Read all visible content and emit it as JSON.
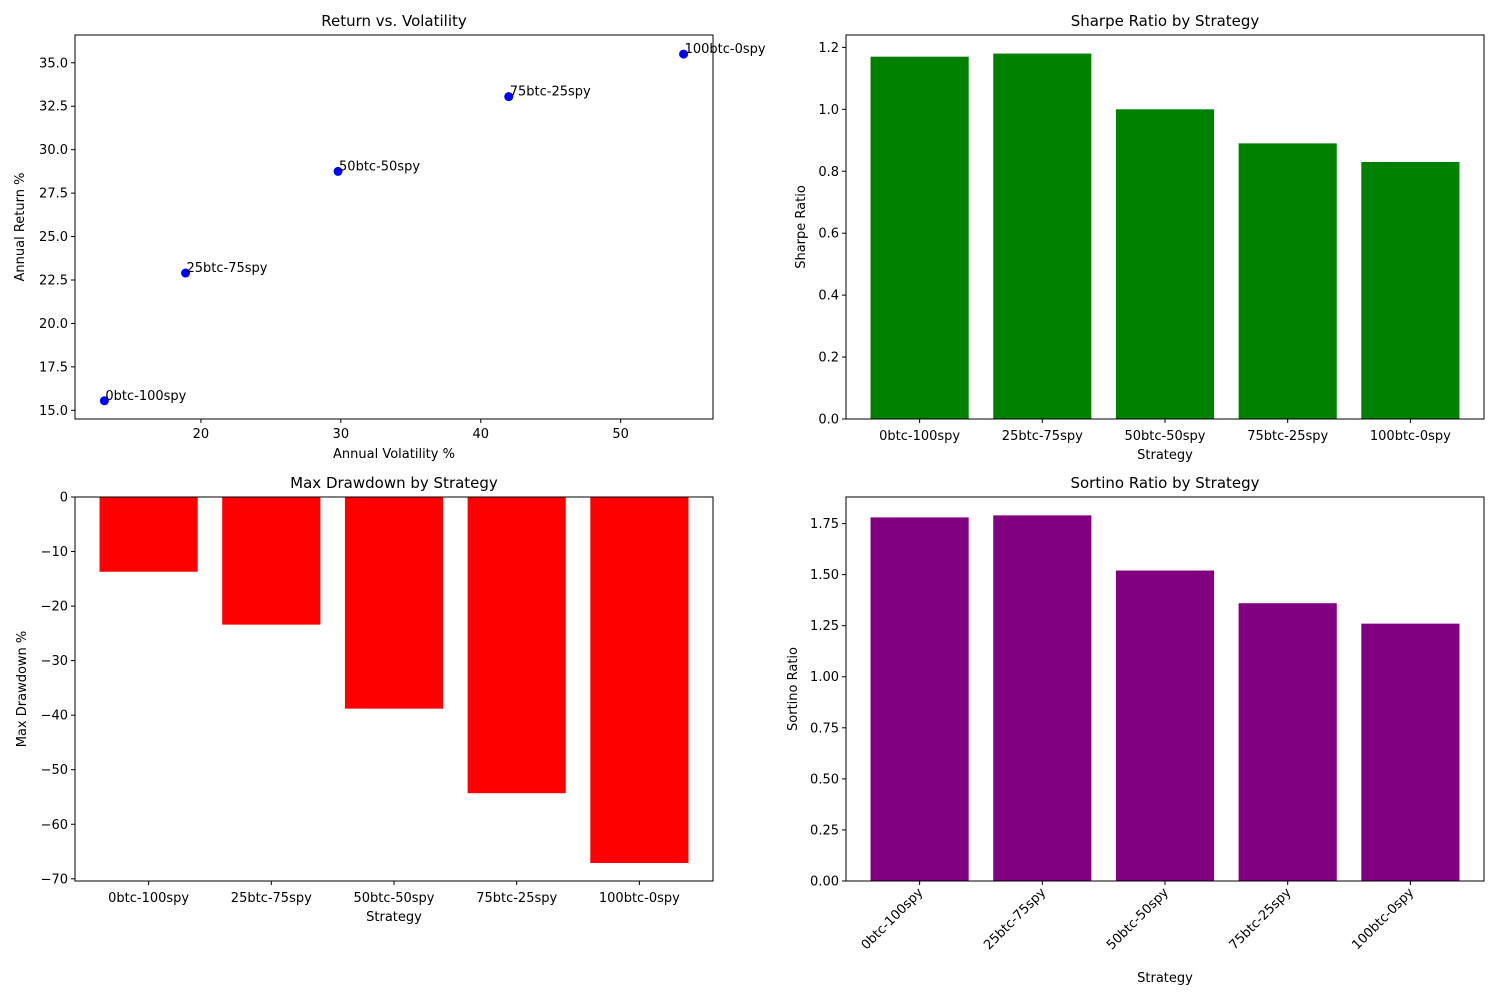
{
  "chart_data": [
    {
      "id": "scatter",
      "type": "scatter",
      "title": "Return vs. Volatility",
      "xlabel": "Annual Volatility %",
      "ylabel": "Annual Return %",
      "xlim": [
        11.0,
        56.6
      ],
      "ylim": [
        14.5,
        36.6
      ],
      "xticks": [
        20,
        30,
        40,
        50
      ],
      "yticks": [
        15.0,
        17.5,
        20.0,
        22.5,
        25.0,
        27.5,
        30.0,
        32.5,
        35.0
      ],
      "color": "#0000ff",
      "points": [
        {
          "label": "0btc-100spy",
          "x": 13.1,
          "y": 15.55
        },
        {
          "label": "25btc-75spy",
          "x": 18.9,
          "y": 22.9
        },
        {
          "label": "50btc-50spy",
          "x": 29.8,
          "y": 28.75
        },
        {
          "label": "75btc-25spy",
          "x": 42.0,
          "y": 33.05
        },
        {
          "label": "100btc-0spy",
          "x": 54.5,
          "y": 35.5
        }
      ]
    },
    {
      "id": "sharpe",
      "type": "bar",
      "title": "Sharpe Ratio by Strategy",
      "xlabel": "Strategy",
      "ylabel": "Sharpe Ratio",
      "ylim": [
        0,
        1.24
      ],
      "yticks": [
        0.0,
        0.2,
        0.4,
        0.6,
        0.8,
        1.0,
        1.2
      ],
      "ytick_decimals": 1,
      "color": "#008000",
      "categories": [
        "0btc-100spy",
        "25btc-75spy",
        "50btc-50spy",
        "75btc-25spy",
        "100btc-0spy"
      ],
      "values": [
        1.17,
        1.18,
        1.0,
        0.89,
        0.83
      ]
    },
    {
      "id": "drawdown",
      "type": "bar",
      "title": "Max Drawdown by Strategy",
      "xlabel": "Strategy",
      "ylabel": "Max Drawdown %",
      "ylim": [
        -70.4,
        0
      ],
      "yticks": [
        0,
        -10,
        -20,
        -30,
        -40,
        -50,
        -60,
        -70
      ],
      "ytick_decimals": 0,
      "color": "#ff0000",
      "categories": [
        "0btc-100spy",
        "25btc-75spy",
        "50btc-50spy",
        "75btc-25spy",
        "100btc-0spy"
      ],
      "values": [
        -13.7,
        -23.4,
        -38.8,
        -54.3,
        -67.1
      ]
    },
    {
      "id": "sortino",
      "type": "bar",
      "title": "Sortino Ratio by Strategy",
      "xlabel": "Strategy",
      "ylabel": "Sortino Ratio",
      "ylim": [
        0,
        1.88
      ],
      "yticks": [
        0.0,
        0.25,
        0.5,
        0.75,
        1.0,
        1.25,
        1.5,
        1.75
      ],
      "ytick_decimals": 2,
      "xtick_rotation": 45,
      "color": "#800080",
      "categories": [
        "0btc-100spy",
        "25btc-75spy",
        "50btc-50spy",
        "75btc-25spy",
        "100btc-0spy"
      ],
      "values": [
        1.78,
        1.79,
        1.52,
        1.36,
        1.26
      ]
    }
  ]
}
